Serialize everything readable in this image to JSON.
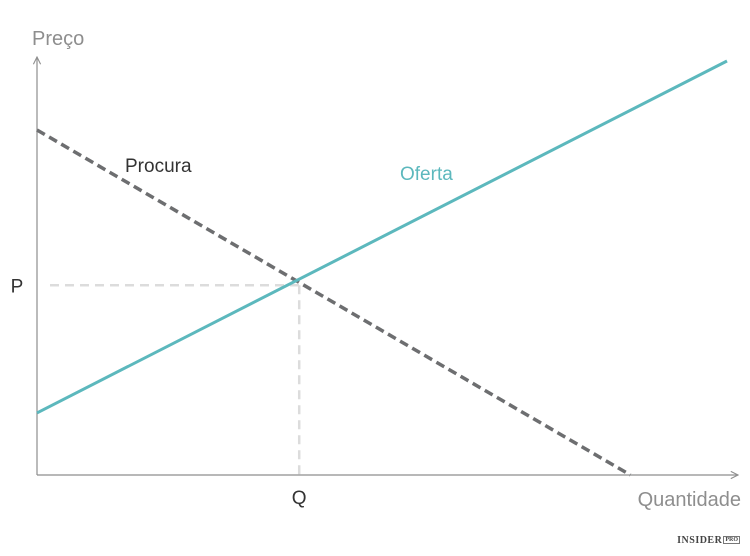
{
  "chart_data": {
    "type": "line",
    "xlabel": "Quantidade",
    "ylabel": "Preço",
    "xlim": [
      0,
      10
    ],
    "ylim": [
      0,
      10
    ],
    "grid": false,
    "x_ticks": [
      {
        "value": 3.8,
        "label": "Q"
      }
    ],
    "y_ticks": [
      {
        "value": 5.5,
        "label": "P"
      }
    ],
    "series": [
      {
        "name": "Procura",
        "style": "dashed",
        "color": "#6d6e70",
        "points": [
          [
            0,
            10
          ],
          [
            8.6,
            0
          ]
        ]
      },
      {
        "name": "Oferta",
        "style": "solid",
        "color": "#5cb8bd",
        "points": [
          [
            0,
            1.8
          ],
          [
            10,
            12
          ]
        ]
      }
    ],
    "reference_lines": {
      "color": "#dcdcdc",
      "style": "dashed",
      "point": [
        3.8,
        5.5
      ]
    }
  },
  "colors": {
    "axis": "#8e8e8e",
    "demand": "#6d6e70",
    "supply": "#5cb8bd",
    "reference": "#dcdcdc"
  },
  "branding": {
    "name": "INSIDER",
    "badge": "PRO"
  }
}
